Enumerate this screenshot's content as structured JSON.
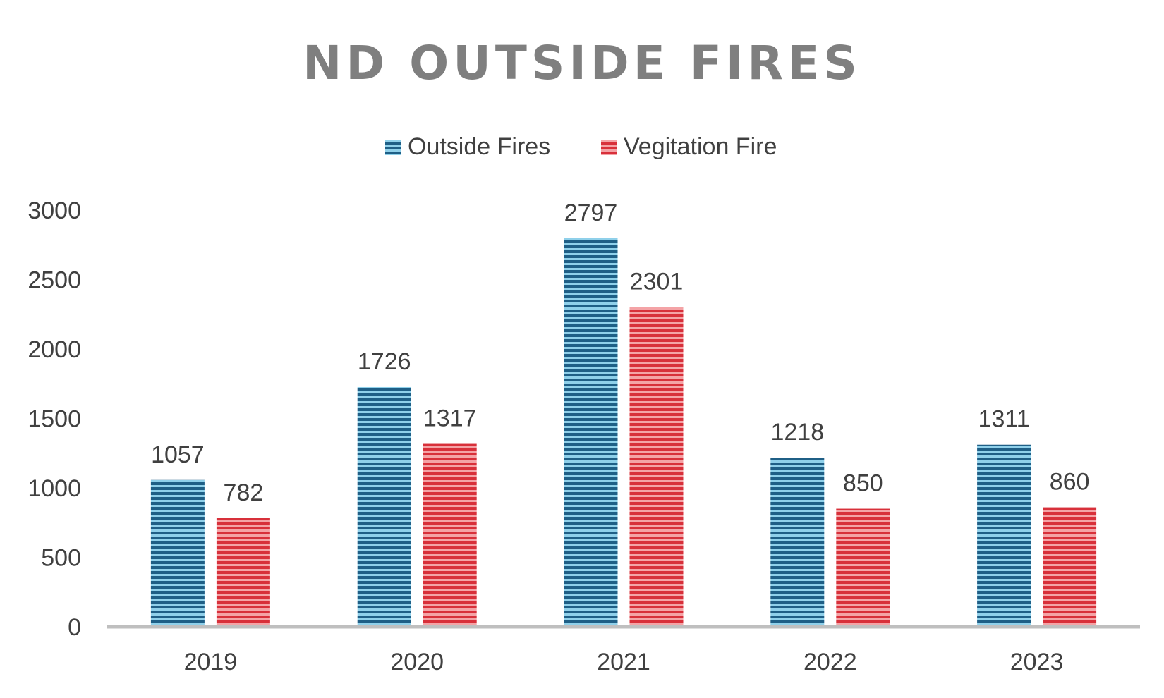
{
  "colors": {
    "outside_fires": "#1f5f86",
    "outside_fires_light": "#8fd0ea",
    "vegetation_fire": "#d8303a",
    "vegetation_fire_light": "#f4a3a6",
    "text": "#404040",
    "title": "#7f7f7f",
    "axis": "#bfbfbf"
  },
  "chart_data": {
    "type": "bar",
    "title": "ND OUTSIDE FIRES",
    "xlabel": "",
    "ylabel": "",
    "categories": [
      "2019",
      "2020",
      "2021",
      "2022",
      "2023"
    ],
    "series": [
      {
        "name": "Outside Fires",
        "values": [
          1057,
          1726,
          2797,
          1218,
          1311
        ]
      },
      {
        "name": "Vegitation Fire",
        "values": [
          782,
          1317,
          2301,
          850,
          860
        ]
      }
    ],
    "ylim": [
      0,
      3000
    ],
    "yticks": [
      0,
      500,
      1000,
      1500,
      2000,
      2500,
      3000
    ],
    "grid": false,
    "legend": "top-center",
    "data_labels": true
  }
}
